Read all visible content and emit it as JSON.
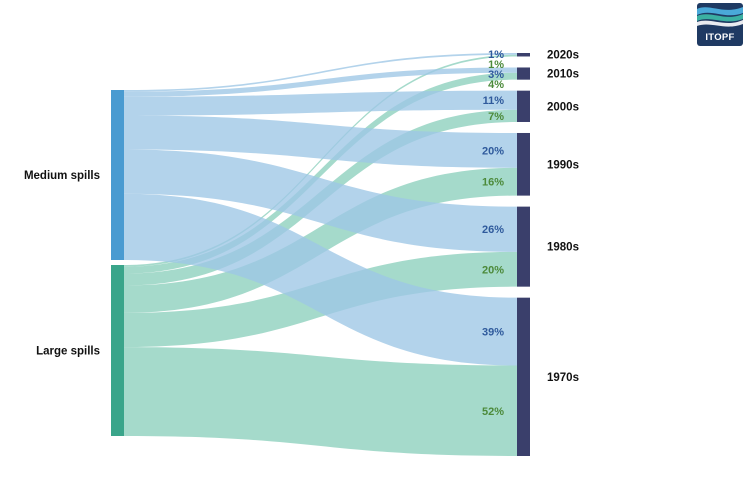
{
  "logo": {
    "text": "ITOPF",
    "bg_color": "#1f3a63"
  },
  "colors": {
    "medium_node": "#4a9bd1",
    "large_node": "#3aa58a",
    "medium_link": "#9ec7e6",
    "large_link": "#8ccfbd",
    "decade_node": "#3a3f6b",
    "medium_pct": "#2f5a9c",
    "large_pct": "#4c8a3a"
  },
  "chart_data": {
    "type": "sankey",
    "sources": [
      {
        "key": "medium",
        "label": "Medium spills"
      },
      {
        "key": "large",
        "label": "Large spills"
      }
    ],
    "targets": [
      {
        "key": "2020s",
        "label": "2020s"
      },
      {
        "key": "2010s",
        "label": "2010s"
      },
      {
        "key": "2000s",
        "label": "2000s"
      },
      {
        "key": "1990s",
        "label": "1990s"
      },
      {
        "key": "1980s",
        "label": "1980s"
      },
      {
        "key": "1970s",
        "label": "1970s"
      }
    ],
    "flows": {
      "medium": [
        {
          "target": "2020s",
          "pct_label": "1%",
          "value": 1
        },
        {
          "target": "2010s",
          "pct_label": "3%",
          "value": 3
        },
        {
          "target": "2000s",
          "pct_label": "11%",
          "value": 11
        },
        {
          "target": "1990s",
          "pct_label": "20%",
          "value": 20
        },
        {
          "target": "1980s",
          "pct_label": "26%",
          "value": 26
        },
        {
          "target": "1970s",
          "pct_label": "39%",
          "value": 39
        }
      ],
      "large": [
        {
          "target": "2020s",
          "pct_label": "1%",
          "value": 1
        },
        {
          "target": "2010s",
          "pct_label": "4%",
          "value": 4
        },
        {
          "target": "2000s",
          "pct_label": "7%",
          "value": 7
        },
        {
          "target": "1990s",
          "pct_label": "16%",
          "value": 16
        },
        {
          "target": "1980s",
          "pct_label": "20%",
          "value": 20
        },
        {
          "target": "1970s",
          "pct_label": "52%",
          "value": 52
        }
      ]
    },
    "source_totals": {
      "medium": 100,
      "large": 100
    }
  }
}
